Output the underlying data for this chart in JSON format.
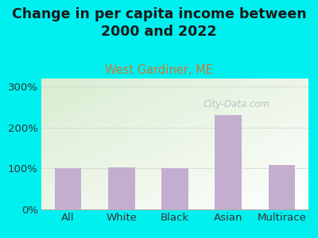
{
  "title": "Change in per capita income between\n2000 and 2022",
  "subtitle": "West Gardiner, ME",
  "categories": [
    "All",
    "White",
    "Black",
    "Asian",
    "Multirace"
  ],
  "values": [
    100,
    103,
    100,
    230,
    108
  ],
  "bar_color": "#c4aed0",
  "title_fontsize": 12.5,
  "subtitle_fontsize": 10.5,
  "subtitle_color": "#c87832",
  "background_color": "#00f0f0",
  "plot_bg_color_topleft": "#d8ecd0",
  "plot_bg_color_right": "#f8faf5",
  "yticks": [
    0,
    100,
    200,
    300
  ],
  "ytick_labels": [
    "0%",
    "100%",
    "200%",
    "300%"
  ],
  "ylim": [
    0,
    320
  ],
  "watermark": "City-Data.com",
  "tick_fontsize": 9.5,
  "grid_color": "#d0c8c8",
  "title_color": "#1a1a1a"
}
